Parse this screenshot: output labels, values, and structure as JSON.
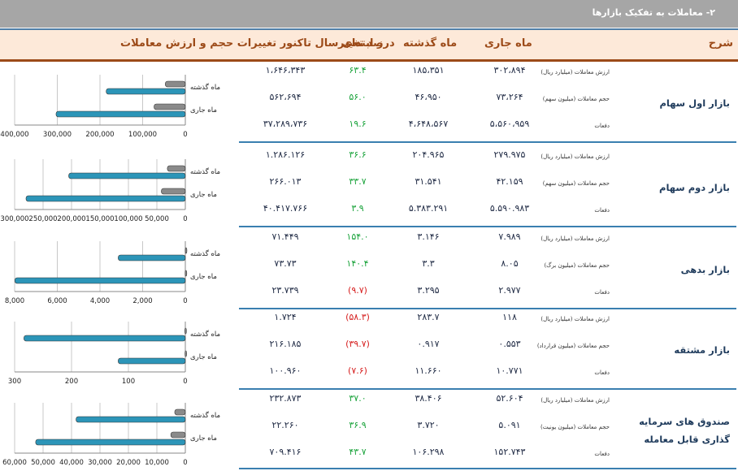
{
  "title": "۲- معاملات به تفکیک بازارها",
  "header": {
    "desc": "شرح",
    "current_month": "ماه جاری",
    "previous_month": "ماه گذشته",
    "change_pct": "درصد تغییر",
    "ytd": "ز ابتدای سال تاکنور تغییرات حجم و ارزش معاملات"
  },
  "legend": {
    "previous": "ماه گذشته",
    "current": "ماه جاری"
  },
  "markets": [
    {
      "name": "بازار اول سهام",
      "rows": [
        {
          "label": "ارزش معاملات (میلیارد ریال)",
          "current": "۳۰۲،۸۹۴",
          "previous": "۱۸۵،۳۵۱",
          "change": "۶۳.۴",
          "change_sign": "pos",
          "ytd": "۱،۶۴۶،۳۴۳"
        },
        {
          "label": "حجم معاملات (میلیون سهم)",
          "current": "۷۳،۲۶۴",
          "previous": "۴۶،۹۵۰",
          "change": "۵۶.۰",
          "change_sign": "pos",
          "ytd": "۵۶۲،۶۹۴"
        },
        {
          "label": "دفعات",
          "current": "۵،۵۶۰،۹۵۹",
          "previous": "۴،۶۴۸،۵۶۷",
          "change": "۱۹.۶",
          "change_sign": "pos",
          "ytd": "۳۷،۲۸۹،۷۳۶"
        }
      ]
    },
    {
      "name": "بازار دوم سهام",
      "rows": [
        {
          "label": "ارزش معاملات (میلیارد ریال)",
          "current": "۲۷۹.۹۷۵",
          "previous": "۲۰۴.۹۶۵",
          "change": "۳۶.۶",
          "change_sign": "pos",
          "ytd": "۱.۲۸۶.۱۲۶"
        },
        {
          "label": "حجم معاملات (میلیون سهم)",
          "current": "۴۲.۱۵۹",
          "previous": "۳۱.۵۴۱",
          "change": "۳۳.۷",
          "change_sign": "pos",
          "ytd": "۲۶۶.۰۱۳"
        },
        {
          "label": "دفعات",
          "current": "۵.۵۹۰.۹۸۳",
          "previous": "۵.۳۸۳.۲۹۱",
          "change": "۳.۹",
          "change_sign": "pos",
          "ytd": "۴۰.۴۱۷.۷۶۶"
        }
      ]
    },
    {
      "name": "بازار بدهی",
      "rows": [
        {
          "label": "ارزش معاملات (میلیارد ریال)",
          "current": "۷.۹۸۹",
          "previous": "۳.۱۴۶",
          "change": "۱۵۴.۰",
          "change_sign": "pos",
          "ytd": "۷۱.۴۴۹"
        },
        {
          "label": "حجم معاملات (میلیون برگ)",
          "current": "۸.۰۵",
          "previous": "۳.۳",
          "change": "۱۴۰.۴",
          "change_sign": "pos",
          "ytd": "۷۳.۷۳"
        },
        {
          "label": "دفعات",
          "current": "۲.۹۷۷",
          "previous": "۳.۲۹۵",
          "change": "(۹.۷)",
          "change_sign": "neg",
          "ytd": "۲۳.۷۳۹"
        }
      ]
    },
    {
      "name": "بازار مشتقه",
      "rows": [
        {
          "label": "ارزش معاملات (میلیارد ریال)",
          "current": "۱۱۸",
          "previous": "۲۸۳.۷",
          "change": "(۵۸.۳)",
          "change_sign": "neg",
          "ytd": "۱.۷۲۴"
        },
        {
          "label": "حجم معاملات (میلیون قرارداد)",
          "current": "۰.۵۵۳",
          "previous": "۰.۹۱۷",
          "change": "(۳۹.۷)",
          "change_sign": "neg",
          "ytd": "۲۱۶.۱۸۵"
        },
        {
          "label": "دفعات",
          "current": "۱۰.۷۷۱",
          "previous": "۱۱.۶۶۰",
          "change": "(۷.۶)",
          "change_sign": "neg",
          "ytd": "۱۰۰.۹۶۰"
        }
      ]
    },
    {
      "name": "صندوق های سرمایه گذاری قابل معامله",
      "rows": [
        {
          "label": "ارزش معاملات (میلیارد ریال)",
          "current": "۵۲.۶۰۴",
          "previous": "۳۸.۴۰۶",
          "change": "۳۷.۰",
          "change_sign": "pos",
          "ytd": "۲۳۲.۸۷۳"
        },
        {
          "label": "حجم معاملات (میلیون یونیت)",
          "current": "۵.۰۹۱",
          "previous": "۳.۷۲۰",
          "change": "۳۶.۹",
          "change_sign": "pos",
          "ytd": "۲۲.۲۶۰"
        },
        {
          "label": "دفعات",
          "current": "۱۵۲.۷۴۳",
          "previous": "۱۰۶.۲۹۸",
          "change": "۴۳.۷",
          "change_sign": "pos",
          "ytd": "۷۰۹.۴۱۶"
        }
      ]
    }
  ],
  "chart_data": [
    {
      "type": "bar",
      "orientation": "horizontal",
      "categories": [
        "ماه گذشته",
        "ماه جاری"
      ],
      "series": [
        {
          "name": "ارزش معاملات",
          "values": [
            185351,
            302894
          ]
        },
        {
          "name": "حجم معاملات",
          "values": [
            46950,
            73264
          ]
        }
      ],
      "xlim": [
        0,
        400000
      ],
      "ticks": [
        "400,000",
        "300,000",
        "200,000",
        "100,000",
        "0"
      ]
    },
    {
      "type": "bar",
      "orientation": "horizontal",
      "categories": [
        "ماه گذشته",
        "ماه جاری"
      ],
      "series": [
        {
          "name": "ارزش معاملات",
          "values": [
            204965,
            279975
          ]
        },
        {
          "name": "حجم معاملات",
          "values": [
            31541,
            42159
          ]
        }
      ],
      "xlim": [
        0,
        300000
      ],
      "ticks": [
        "300,000",
        "250,000",
        "200,000",
        "150,000",
        "100,000",
        "50,000",
        "0"
      ]
    },
    {
      "type": "bar",
      "orientation": "horizontal",
      "categories": [
        "ماه گذشته",
        "ماه جاری"
      ],
      "series": [
        {
          "name": "ارزش معاملات",
          "values": [
            3146,
            7989
          ]
        },
        {
          "name": "حجم معاملات",
          "values": [
            3.3,
            8.05
          ]
        }
      ],
      "xlim": [
        0,
        8000
      ],
      "ticks": [
        "8,000",
        "6,000",
        "4,000",
        "2,000",
        "0"
      ]
    },
    {
      "type": "bar",
      "orientation": "horizontal",
      "categories": [
        "ماه گذشته",
        "ماه جاری"
      ],
      "series": [
        {
          "name": "ارزش معاملات",
          "values": [
            283.7,
            118
          ]
        },
        {
          "name": "حجم معاملات",
          "values": [
            0.917,
            0.553
          ]
        }
      ],
      "xlim": [
        0,
        300
      ],
      "ticks": [
        "300",
        "200",
        "100",
        "0"
      ]
    },
    {
      "type": "bar",
      "orientation": "horizontal",
      "categories": [
        "ماه گذشته",
        "ماه جاری"
      ],
      "series": [
        {
          "name": "ارزش معاملات",
          "values": [
            38406,
            52604
          ]
        },
        {
          "name": "حجم معاملات",
          "values": [
            3720,
            5091
          ]
        }
      ],
      "xlim": [
        0,
        60000
      ],
      "ticks": [
        "60,000",
        "50,000",
        "40,000",
        "30,000",
        "20,000",
        "10,000",
        "0"
      ]
    }
  ]
}
